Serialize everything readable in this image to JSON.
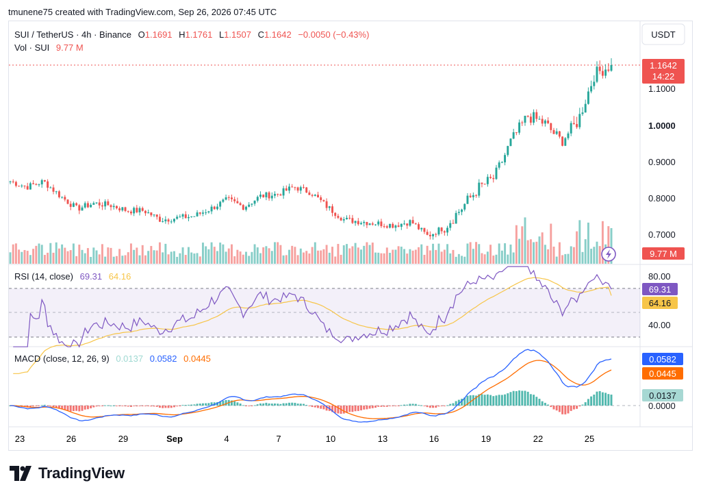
{
  "header": {
    "attribution": "tmunene75 created with TradingView.com, Sep 26, 2026 07:45 UTC"
  },
  "symbol": {
    "title": "SUI / TetherUS · 4h · Binance",
    "o_label": "O",
    "o_value": "1.1691",
    "h_label": "H",
    "h_value": "1.1761",
    "l_label": "L",
    "l_value": "1.1507",
    "c_label": "C",
    "c_value": "1.1642",
    "change": "−0.0050 (−0.43%)"
  },
  "volume_legend": {
    "label": "Vol · SUI",
    "value": "9.77 M"
  },
  "currency_button": "USDT",
  "price_badge": {
    "price": "1.1642",
    "countdown": "14:22"
  },
  "volume_badge": "9.77 M",
  "price_axis": {
    "labels": [
      "1.1000",
      "1.0000",
      "0.9000",
      "0.8000",
      "0.7000"
    ]
  },
  "rsi": {
    "title": "RSI (14, close)",
    "rsi_value": "69.31",
    "ma_value": "64.16",
    "axis_labels": [
      "80.00",
      "40.00"
    ]
  },
  "macd": {
    "title": "MACD (close, 12, 26, 9)",
    "hist_value": "0.0137",
    "macd_value": "0.0582",
    "signal_value": "0.0445",
    "axis_labels": [
      "0.0000"
    ]
  },
  "time_axis": {
    "labels": [
      "23",
      "26",
      "29",
      "Sep",
      "4",
      "7",
      "10",
      "13",
      "16",
      "19",
      "22",
      "25"
    ]
  },
  "footer": {
    "brand": "TradingView"
  },
  "colors": {
    "up": "#26a69a",
    "down": "#ef5350",
    "rsi_line": "#7e57c2",
    "rsi_ma": "#f7c548",
    "macd_line": "#2962ff",
    "signal_line": "#ff6d00",
    "hist_up": "#26a69a",
    "hist_down": "#ef5350"
  },
  "chart_data": {
    "type": "candlestick",
    "title": "SUI / TetherUS · 4h · Binance",
    "price_range": [
      0.66,
      1.19
    ],
    "price_ticks": [
      0.7,
      0.8,
      0.9,
      1.0,
      1.1
    ],
    "last_price": 1.1642,
    "close_path": [
      {
        "x": "Aug 22",
        "y": 0.845
      },
      {
        "x": "Aug 23",
        "y": 0.83
      },
      {
        "x": "Aug 24",
        "y": 0.845
      },
      {
        "x": "Aug 25",
        "y": 0.805
      },
      {
        "x": "Aug 26",
        "y": 0.77
      },
      {
        "x": "Aug 27",
        "y": 0.785
      },
      {
        "x": "Aug 28",
        "y": 0.78
      },
      {
        "x": "Aug 29",
        "y": 0.765
      },
      {
        "x": "Aug 30",
        "y": 0.765
      },
      {
        "x": "Aug 31",
        "y": 0.74
      },
      {
        "x": "Sep 1",
        "y": 0.745
      },
      {
        "x": "Sep 2",
        "y": 0.75
      },
      {
        "x": "Sep 3",
        "y": 0.77
      },
      {
        "x": "Sep 4",
        "y": 0.795
      },
      {
        "x": "Sep 5",
        "y": 0.775
      },
      {
        "x": "Sep 6",
        "y": 0.805
      },
      {
        "x": "Sep 7",
        "y": 0.81
      },
      {
        "x": "Sep 8",
        "y": 0.83
      },
      {
        "x": "Sep 9",
        "y": 0.815
      },
      {
        "x": "Sep 10",
        "y": 0.775
      },
      {
        "x": "Sep 11",
        "y": 0.74
      },
      {
        "x": "Sep 12",
        "y": 0.735
      },
      {
        "x": "Sep 13",
        "y": 0.73
      },
      {
        "x": "Sep 14",
        "y": 0.725
      },
      {
        "x": "Sep 15",
        "y": 0.735
      },
      {
        "x": "Sep 16",
        "y": 0.695
      },
      {
        "x": "Sep 17",
        "y": 0.72
      },
      {
        "x": "Sep 18",
        "y": 0.77
      },
      {
        "x": "Sep 19",
        "y": 0.825
      },
      {
        "x": "Sep 20",
        "y": 0.855
      },
      {
        "x": "Sep 21",
        "y": 0.955
      },
      {
        "x": "Sep 22",
        "y": 1.025
      },
      {
        "x": "Sep 23",
        "y": 1.005
      },
      {
        "x": "Sep 24",
        "y": 0.955
      },
      {
        "x": "Sep 25",
        "y": 1.01
      },
      {
        "x": "Sep 25 12:00",
        "y": 1.14
      },
      {
        "x": "Sep 26 04:00",
        "y": 1.1642
      }
    ],
    "rsi_series": {
      "name": "RSI (14, close)",
      "last": 69.31,
      "levels": [
        30,
        50,
        70
      ],
      "ticks": [
        40,
        80
      ]
    },
    "rsi_ma_series": {
      "last": 64.16
    },
    "macd_series": {
      "name": "MACD (close, 12, 26, 9)",
      "macd_last": 0.0582,
      "signal_last": 0.0445,
      "histogram_last": 0.0137
    },
    "volume_last": "9.77M",
    "x_ticks": [
      "23",
      "26",
      "29",
      "Sep",
      "4",
      "7",
      "10",
      "13",
      "16",
      "19",
      "22",
      "25"
    ]
  }
}
